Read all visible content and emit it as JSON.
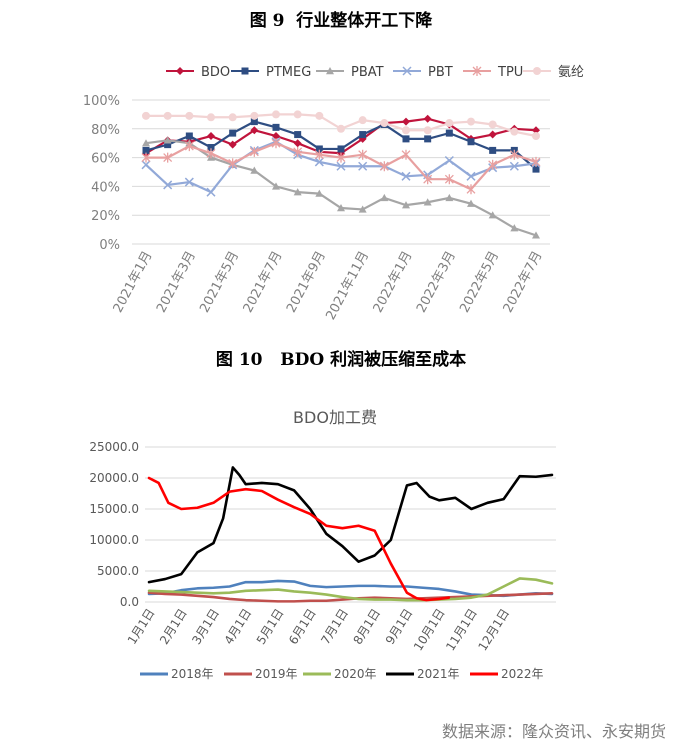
{
  "figures": [
    {
      "label": "图 9",
      "caption": "行业整体开工下降"
    },
    {
      "label": "图 10",
      "caption": "BDO 利润被压缩至成本"
    }
  ],
  "source": "数据来源：隆众资讯、永安期货",
  "chart_data": [
    {
      "type": "line",
      "title": "",
      "x": [
        "2021年1月",
        "2021年2月",
        "2021年3月",
        "2021年4月",
        "2021年5月",
        "2021年6月",
        "2021年7月",
        "2021年8月",
        "2021年9月",
        "2021年10月",
        "2021年11月",
        "2021年12月",
        "2022年1月",
        "2022年2月",
        "2022年3月",
        "2022年4月",
        "2022年5月",
        "2022年6月",
        "2022年7月"
      ],
      "x_tick_labels": [
        "2021年1月",
        "2021年3月",
        "2021年5月",
        "2021年7月",
        "2021年9月",
        "2021年11月",
        "2022年1月",
        "2022年3月",
        "2022年5月",
        "2022年7月"
      ],
      "y_ticks": [
        "0%",
        "20%",
        "40%",
        "60%",
        "80%",
        "100%"
      ],
      "ylim": [
        0,
        100
      ],
      "legend_position": "top",
      "grid": true,
      "series": [
        {
          "name": "BDO",
          "color": "#C0143C",
          "marker": "diamond",
          "values": [
            63,
            72,
            71,
            75,
            69,
            79,
            75,
            70,
            64,
            63,
            73,
            84,
            85,
            87,
            83,
            73,
            76,
            80,
            79
          ]
        },
        {
          "name": "PTMEG",
          "color": "#2E4D82",
          "marker": "square",
          "values": [
            65,
            69,
            75,
            67,
            77,
            85,
            81,
            76,
            66,
            66,
            76,
            83,
            73,
            73,
            77,
            71,
            65,
            65,
            52
          ]
        },
        {
          "name": "PBAT",
          "color": "#A6A6A6",
          "marker": "triangle",
          "values": [
            70,
            72,
            70,
            60,
            55,
            51,
            40,
            36,
            35,
            25,
            24,
            32,
            27,
            29,
            32,
            28,
            20,
            11,
            6
          ]
        },
        {
          "name": "PBT",
          "color": "#92A9D8",
          "marker": "x",
          "values": [
            55,
            41,
            43,
            36,
            55,
            65,
            71,
            62,
            57,
            54,
            54,
            54,
            47,
            48,
            58,
            47,
            53,
            54,
            56
          ]
        },
        {
          "name": "TPU",
          "color": "#E8A0A0",
          "marker": "star",
          "values": [
            60,
            60,
            68,
            63,
            56,
            64,
            70,
            64,
            62,
            60,
            62,
            54,
            62,
            45,
            45,
            38,
            55,
            62,
            57
          ]
        },
        {
          "name": "氨纶",
          "color": "#F2D3D3",
          "marker": "circle",
          "values": [
            89,
            89,
            89,
            88,
            88,
            89,
            90,
            90,
            89,
            80,
            86,
            84,
            79,
            79,
            84,
            85,
            83,
            78,
            75
          ]
        }
      ]
    },
    {
      "type": "line",
      "title": "BDO加工费",
      "x_tick_labels": [
        "1月1日",
        "2月1日",
        "3月1日",
        "4月1日",
        "5月1日",
        "6月1日",
        "7月1日",
        "8月1日",
        "9月1日",
        "10月1日",
        "11月1日",
        "12月1日"
      ],
      "y_ticks": [
        "0.0",
        "5000.0",
        "10000.0",
        "15000.0",
        "20000.0",
        "25000.0"
      ],
      "ylim": [
        0,
        25000
      ],
      "legend_position": "bottom",
      "grid": true,
      "series": [
        {
          "name": "2018年",
          "color": "#4F81BD",
          "x": [
            0,
            0.5,
            1,
            1.5,
            2,
            2.5,
            3,
            3.5,
            4,
            4.5,
            5,
            5.5,
            6,
            6.5,
            7,
            7.5,
            8,
            8.5,
            9,
            9.5,
            10,
            10.5,
            11,
            11.5,
            12,
            12.5
          ],
          "values": [
            1300,
            1400,
            1900,
            2200,
            2300,
            2500,
            3200,
            3200,
            3400,
            3300,
            2600,
            2400,
            2500,
            2600,
            2600,
            2500,
            2500,
            2300,
            2100,
            1700,
            1200,
            1100,
            1000,
            1200,
            1400,
            1300
          ]
        },
        {
          "name": "2019年",
          "color": "#C0504D",
          "x": [
            0,
            0.5,
            1,
            1.5,
            2,
            2.5,
            3,
            3.5,
            4,
            4.5,
            5,
            5.5,
            6,
            6.5,
            7,
            7.5,
            8,
            8.5,
            9,
            9.5,
            10,
            10.5,
            11,
            11.5,
            12,
            12.5
          ],
          "values": [
            1500,
            1300,
            1200,
            1000,
            800,
            500,
            300,
            200,
            100,
            100,
            200,
            200,
            400,
            600,
            700,
            600,
            500,
            600,
            700,
            800,
            900,
            1000,
            1100,
            1200,
            1300,
            1400
          ]
        },
        {
          "name": "2020年",
          "color": "#9BBB59",
          "x": [
            0,
            0.5,
            1,
            1.5,
            2,
            2.5,
            3,
            3.5,
            4,
            4.5,
            5,
            5.5,
            6,
            6.5,
            7,
            7.5,
            8,
            8.5,
            9,
            9.5,
            10,
            10.5,
            11,
            11.5,
            12,
            12.5
          ],
          "values": [
            1800,
            1700,
            1600,
            1500,
            1400,
            1500,
            1800,
            1900,
            2000,
            1700,
            1500,
            1200,
            800,
            500,
            400,
            400,
            300,
            300,
            400,
            500,
            700,
            1200,
            2500,
            3800,
            3600,
            3000
          ]
        },
        {
          "name": "2021年",
          "color": "#000000",
          "x": [
            0,
            0.5,
            1,
            1.5,
            2,
            2.3,
            2.6,
            2.8,
            3,
            3.5,
            4,
            4.5,
            5,
            5.5,
            6,
            6.5,
            7,
            7.5,
            8,
            8.3,
            8.7,
            9,
            9.5,
            10,
            10.5,
            11,
            11.5,
            12,
            12.5
          ],
          "values": [
            3200,
            3700,
            4500,
            8000,
            9500,
            13500,
            21700,
            20500,
            19000,
            19200,
            19000,
            18000,
            15000,
            11000,
            9000,
            6500,
            7500,
            10000,
            18800,
            19200,
            17000,
            16400,
            16800,
            15000,
            16000,
            16600,
            20300,
            20200,
            20500
          ]
        },
        {
          "name": "2022年",
          "color": "#FF0000",
          "x": [
            0,
            0.3,
            0.6,
            1,
            1.5,
            2,
            2.5,
            3,
            3.5,
            4,
            4.5,
            5,
            5.5,
            6,
            6.5,
            7,
            7.5,
            8,
            8.3,
            8.6,
            9,
            9.3
          ],
          "values": [
            20000,
            19200,
            16000,
            15000,
            15200,
            16000,
            17800,
            18200,
            17900,
            16500,
            15300,
            14200,
            12300,
            11900,
            12300,
            11500,
            6200,
            1500,
            600,
            300,
            500,
            700
          ]
        }
      ]
    }
  ]
}
